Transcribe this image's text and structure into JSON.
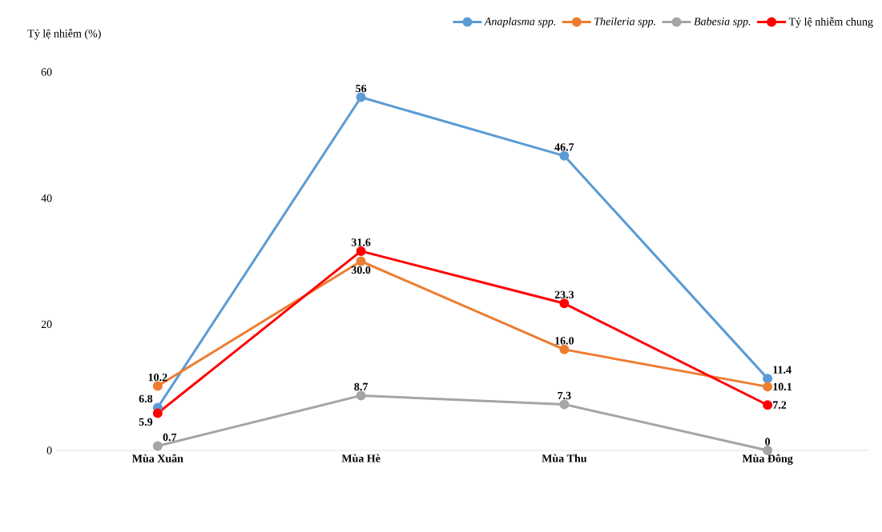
{
  "chart_data": {
    "type": "line",
    "ylabel": "Tỷ lệ nhiễm (%)",
    "categories": [
      "Mùa Xuân",
      "Mùa Hè",
      "Mùa Thu",
      "Mùa Đông"
    ],
    "series": [
      {
        "name": "Anaplasma spp.",
        "color": "#5b9bd5",
        "values": [
          6.8,
          56,
          46.7,
          11.4
        ],
        "value_labels": [
          "6.8",
          "56",
          "46.7",
          "11.4"
        ]
      },
      {
        "name": "Theileria spp.",
        "color": "#ed7d31",
        "values": [
          10.2,
          30.0,
          16.0,
          10.1
        ],
        "value_labels": [
          "10.2",
          "30.0",
          "16.0",
          "10.1"
        ]
      },
      {
        "name": "Babesia spp.",
        "color": "#a5a5a5",
        "values": [
          0.7,
          8.7,
          7.3,
          0
        ],
        "value_labels": [
          "0.7",
          "8.7",
          "7.3",
          "0"
        ]
      },
      {
        "name": "Tỷ lệ nhiễm chung",
        "color": "#ff0000",
        "values": [
          5.9,
          31.6,
          23.3,
          7.2
        ],
        "value_labels": [
          "5.9",
          "31.6",
          "23.3",
          "7.2"
        ]
      }
    ],
    "ylim": [
      0,
      60
    ],
    "yticks": [
      0,
      20,
      40,
      60
    ],
    "grid": false,
    "legend": "top",
    "marker": "circle",
    "line_style": "solid"
  }
}
